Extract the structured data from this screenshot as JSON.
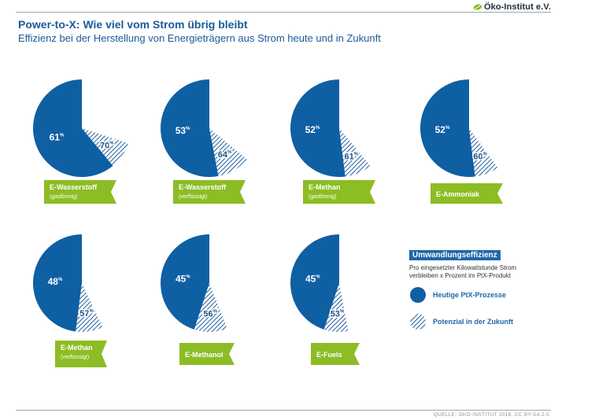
{
  "header": {
    "title": "Power-to-X: Wie viel vom Strom übrig bleibt",
    "subtitle": "Effizienz bei der Herstellung von Energieträgern aus Strom heute und in Zukunft",
    "logo_text": "Öko-Institut e.V."
  },
  "chart_data": {
    "type": "pie",
    "title": "Power-to-X: Wie viel vom Strom übrig bleibt",
    "subtitle": "Effizienz bei der Herstellung von Energieträgern aus Strom heute und in Zukunft",
    "unit": "%",
    "items": [
      {
        "label": "E-Wasserstoff",
        "sublabel": "(gasförmig)",
        "current": 61,
        "future": 70
      },
      {
        "label": "E-Wasserstoff",
        "sublabel": "(verflüssigt)",
        "current": 53,
        "future": 64
      },
      {
        "label": "E-Methan",
        "sublabel": "(gasförmig)",
        "current": 52,
        "future": 61
      },
      {
        "label": "E-Ammoniak",
        "sublabel": "",
        "current": 52,
        "future": 60
      },
      {
        "label": "E-Methan",
        "sublabel": "(verflüssigt)",
        "current": 48,
        "future": 57
      },
      {
        "label": "E-Methanol",
        "sublabel": "",
        "current": 45,
        "future": 56
      },
      {
        "label": "E-Fuels",
        "sublabel": "",
        "current": 45,
        "future": 53
      }
    ],
    "legend": {
      "heading": "Umwandlungseffizienz",
      "description": "Pro eingesetzter Kilowattstunde Strom verbleiben x Prozent im PtX-Produkt",
      "current_label": "Heutige PtX-Prozesse",
      "future_label": "Potenzial in der Zukunft"
    }
  },
  "colors": {
    "blue": "#0f5fa3",
    "hatch": "#1f5f9c",
    "green": "#8cbd24",
    "title": "#1a5b98"
  },
  "source": "QUELLE: ÖKO-INSTITUT 2019, CC BY-SA 2.0"
}
